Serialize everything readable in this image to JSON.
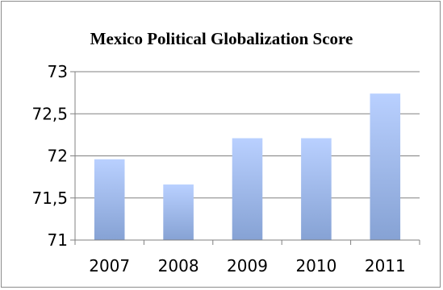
{
  "chart_data": {
    "type": "bar",
    "title": "Mexico Political Globalization Score",
    "categories": [
      "2007",
      "2008",
      "2009",
      "2010",
      "2011"
    ],
    "values": [
      71.96,
      71.66,
      72.21,
      72.21,
      72.74
    ],
    "ylim": [
      71,
      73
    ],
    "yticks": [
      71,
      71.5,
      72,
      72.5,
      73
    ],
    "ytick_labels": [
      "71",
      "71,5",
      "72",
      "72,5",
      "73"
    ],
    "grid": true,
    "legend": "none",
    "colors": {
      "bar_top": "#b9d0ff",
      "bar_bottom": "#86a2d4",
      "grid": "#808080",
      "frame": "#8c8c8c"
    }
  }
}
